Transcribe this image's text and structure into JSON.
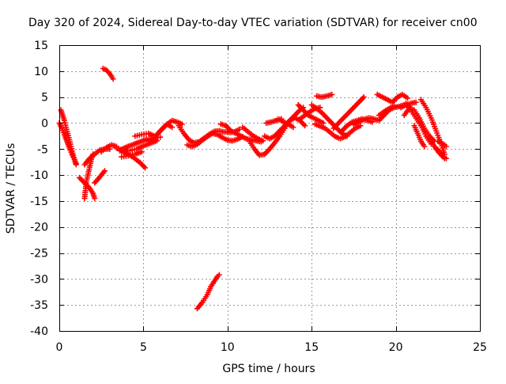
{
  "chart_data": {
    "type": "scatter",
    "title": "Day 320 of 2024, Sidereal Day-to-day VTEC variation (SDTVAR) for receiver cn00",
    "xlabel": "GPS time / hours",
    "ylabel": "SDTVAR / TECUs",
    "xlim": [
      0,
      25
    ],
    "ylim": [
      -40,
      15
    ],
    "x_ticks": [
      0,
      5,
      10,
      15,
      20,
      25
    ],
    "y_ticks": [
      15,
      10,
      5,
      0,
      -5,
      -10,
      -15,
      -20,
      -25,
      -30,
      -35,
      -40
    ],
    "grid": true,
    "marker": "+",
    "color": "#ff0000",
    "series": [
      {
        "name": "SDTVAR",
        "segments": [
          [
            [
              0.1,
              2.5
            ],
            [
              0.2,
              1.5
            ],
            [
              0.3,
              0.5
            ],
            [
              0.4,
              -0.8
            ],
            [
              0.5,
              -2
            ],
            [
              0.6,
              -3.2
            ],
            [
              0.7,
              -4.5
            ],
            [
              0.8,
              -5.8
            ],
            [
              0.9,
              -7
            ],
            [
              1.0,
              -8
            ]
          ],
          [
            [
              0.0,
              0
            ],
            [
              0.15,
              -1
            ],
            [
              0.3,
              -2.2
            ],
            [
              0.45,
              -3.5
            ],
            [
              0.6,
              -4.8
            ],
            [
              0.75,
              -6
            ],
            [
              0.9,
              -7
            ],
            [
              1.0,
              -7.8
            ]
          ],
          [
            [
              1.2,
              -10.5
            ],
            [
              1.5,
              -11.5
            ],
            [
              1.8,
              -12.5
            ],
            [
              2.0,
              -13.5
            ],
            [
              2.1,
              -14.5
            ]
          ],
          [
            [
              1.5,
              -14.5
            ],
            [
              1.55,
              -13
            ],
            [
              1.6,
              -11.5
            ],
            [
              1.7,
              -10
            ],
            [
              1.8,
              -8.5
            ],
            [
              1.9,
              -7
            ],
            [
              2.0,
              -6
            ]
          ],
          [
            [
              2.1,
              -11.5
            ],
            [
              2.3,
              -10.8
            ],
            [
              2.5,
              -10
            ],
            [
              2.7,
              -9.2
            ]
          ],
          [
            [
              1.5,
              -8
            ],
            [
              1.8,
              -6.8
            ],
            [
              2.1,
              -6
            ],
            [
              2.4,
              -5.2
            ],
            [
              2.7,
              -5
            ],
            [
              3.0,
              -5
            ]
          ],
          [
            [
              2.6,
              10.5
            ],
            [
              2.8,
              10.2
            ],
            [
              3.0,
              9.5
            ],
            [
              3.2,
              8.5
            ]
          ],
          [
            [
              2.5,
              -5.5
            ],
            [
              2.8,
              -4.7
            ],
            [
              3.1,
              -4.2
            ],
            [
              3.4,
              -4.5
            ]
          ],
          [
            [
              3.6,
              -5.2
            ],
            [
              4.0,
              -4.6
            ],
            [
              4.4,
              -4.1
            ],
            [
              4.8,
              -3.6
            ],
            [
              5.2,
              -3.1
            ],
            [
              5.6,
              -2.8
            ],
            [
              6.0,
              -2.7
            ]
          ],
          [
            [
              3.4,
              -4.8
            ],
            [
              3.8,
              -5.2
            ],
            [
              4.2,
              -5.3
            ],
            [
              4.6,
              -5.0
            ],
            [
              5.0,
              -4.4
            ],
            [
              5.4,
              -3.9
            ],
            [
              5.8,
              -3.4
            ]
          ],
          [
            [
              3.7,
              -6.5
            ],
            [
              4.1,
              -6.3
            ],
            [
              4.5,
              -6.0
            ],
            [
              4.9,
              -5.5
            ]
          ],
          [
            [
              3.6,
              -5.3
            ],
            [
              4.0,
              -5.8
            ],
            [
              4.4,
              -6.6
            ],
            [
              4.8,
              -7.6
            ],
            [
              5.1,
              -8.6
            ]
          ],
          [
            [
              4.5,
              -2.5
            ],
            [
              4.9,
              -2.2
            ],
            [
              5.3,
              -2.0
            ],
            [
              5.6,
              -2.4
            ]
          ],
          [
            [
              5.3,
              -3.5
            ],
            [
              5.6,
              -3.0
            ],
            [
              6.0,
              -1.5
            ],
            [
              6.3,
              -0.5
            ],
            [
              6.7,
              0.5
            ],
            [
              7.0,
              0.2
            ],
            [
              7.3,
              -0.2
            ]
          ],
          [
            [
              5.8,
              -2.2
            ],
            [
              6.1,
              -1.2
            ],
            [
              6.4,
              -0.2
            ],
            [
              6.7,
              -0.8
            ]
          ],
          [
            [
              7.1,
              -0.5
            ],
            [
              7.4,
              -2.0
            ],
            [
              7.7,
              -3.2
            ],
            [
              8.0,
              -3.8
            ],
            [
              8.3,
              -3.6
            ],
            [
              8.6,
              -2.9
            ],
            [
              8.9,
              -2.2
            ],
            [
              9.2,
              -1.6
            ],
            [
              9.5,
              -1.5
            ],
            [
              9.8,
              -1.7
            ],
            [
              10.1,
              -1.8
            ],
            [
              10.4,
              -1.7
            ],
            [
              10.7,
              -1.2
            ]
          ],
          [
            [
              7.6,
              -4.2
            ],
            [
              7.9,
              -4.5
            ],
            [
              8.2,
              -4.1
            ],
            [
              8.5,
              -3.3
            ],
            [
              8.8,
              -2.6
            ],
            [
              9.1,
              -2.0
            ],
            [
              9.4,
              -2.2
            ],
            [
              9.7,
              -2.8
            ],
            [
              10.0,
              -3.3
            ],
            [
              10.3,
              -3.4
            ],
            [
              10.6,
              -3.1
            ],
            [
              10.9,
              -2.6
            ]
          ],
          [
            [
              9.6,
              -0.2
            ],
            [
              9.9,
              -0.5
            ],
            [
              10.2,
              -1.5
            ],
            [
              10.5,
              -2.0
            ],
            [
              10.8,
              -2.5
            ],
            [
              11.1,
              -3.0
            ],
            [
              11.4,
              -3.2
            ],
            [
              11.7,
              -3.4
            ],
            [
              12.0,
              -3.6
            ]
          ],
          [
            [
              10.9,
              -0.8
            ],
            [
              11.2,
              -1.6
            ],
            [
              11.5,
              -2.4
            ],
            [
              11.8,
              -3.0
            ],
            [
              12.1,
              -3.4
            ]
          ],
          [
            [
              11.3,
              -3.5
            ],
            [
              11.6,
              -5.0
            ],
            [
              11.9,
              -6.2
            ],
            [
              12.2,
              -6.0
            ],
            [
              12.5,
              -5.0
            ],
            [
              12.8,
              -3.8
            ],
            [
              13.1,
              -2.5
            ],
            [
              13.4,
              -1.0
            ],
            [
              13.7,
              0.5
            ],
            [
              14.0,
              1.5
            ],
            [
              14.3,
              2.5
            ],
            [
              14.5,
              3.0
            ]
          ],
          [
            [
              12.2,
              -2.5
            ],
            [
              12.5,
              -3.0
            ],
            [
              12.8,
              -2.5
            ],
            [
              13.1,
              -1.5
            ],
            [
              13.4,
              -0.5
            ],
            [
              13.7,
              0.5
            ],
            [
              14.0,
              1.0
            ],
            [
              14.3,
              0.5
            ],
            [
              14.6,
              -0.5
            ]
          ],
          [
            [
              12.3,
              0
            ],
            [
              12.6,
              0.2
            ],
            [
              12.9,
              0.5
            ],
            [
              13.2,
              0.8
            ]
          ],
          [
            [
              13.0,
              0.8
            ],
            [
              13.3,
              0.3
            ],
            [
              13.6,
              -0.2
            ],
            [
              13.9,
              -0.8
            ]
          ],
          [
            [
              14.2,
              3.5
            ],
            [
              14.5,
              2.5
            ],
            [
              14.8,
              1.5
            ],
            [
              15.1,
              1.0
            ],
            [
              15.4,
              0.5
            ],
            [
              15.7,
              0
            ]
          ],
          [
            [
              14.3,
              0.8
            ],
            [
              14.6,
              1.5
            ],
            [
              14.9,
              2.2
            ],
            [
              15.2,
              2.8
            ],
            [
              15.5,
              3.0
            ]
          ],
          [
            [
              15.0,
              3.5
            ],
            [
              15.3,
              2.8
            ],
            [
              15.6,
              2.0
            ],
            [
              15.9,
              1.0
            ],
            [
              16.2,
              0
            ],
            [
              16.5,
              -1.0
            ],
            [
              16.8,
              -2.0
            ],
            [
              17.1,
              -2.5
            ]
          ],
          [
            [
              15.2,
              -0.2
            ],
            [
              15.5,
              -0.6
            ],
            [
              15.8,
              -1.0
            ],
            [
              16.1,
              -1.8
            ],
            [
              16.4,
              -2.6
            ],
            [
              16.7,
              -3.0
            ],
            [
              17.0,
              -2.6
            ],
            [
              17.3,
              -1.8
            ],
            [
              17.6,
              -1.0
            ],
            [
              17.9,
              -0.5
            ]
          ],
          [
            [
              15.3,
              5.2
            ],
            [
              15.6,
              5.0
            ],
            [
              15.9,
              5.2
            ],
            [
              16.2,
              5.5
            ]
          ],
          [
            [
              16.3,
              -1.0
            ],
            [
              16.6,
              0
            ],
            [
              16.9,
              1.0
            ],
            [
              17.2,
              2.0
            ],
            [
              17.5,
              3.0
            ],
            [
              17.8,
              4.0
            ],
            [
              18.1,
              5.0
            ]
          ],
          [
            [
              16.8,
              -1.5
            ],
            [
              17.1,
              -0.5
            ],
            [
              17.4,
              0.2
            ],
            [
              17.7,
              0.5
            ],
            [
              18.0,
              0.8
            ],
            [
              18.3,
              0.5
            ],
            [
              18.6,
              0.2
            ]
          ],
          [
            [
              17.5,
              -0.3
            ],
            [
              17.8,
              0.2
            ],
            [
              18.1,
              0.7
            ],
            [
              18.4,
              1.0
            ],
            [
              18.7,
              0.8
            ],
            [
              19.0,
              0.5
            ],
            [
              19.3,
              1.5
            ],
            [
              19.6,
              2.5
            ],
            [
              19.9,
              3.0
            ],
            [
              20.2,
              3.2
            ],
            [
              20.5,
              3.5
            ],
            [
              20.8,
              3.2
            ]
          ],
          [
            [
              18.9,
              5.5
            ],
            [
              19.2,
              5.0
            ],
            [
              19.5,
              4.5
            ],
            [
              19.8,
              4.0
            ],
            [
              20.1,
              5.0
            ],
            [
              20.4,
              5.5
            ],
            [
              20.7,
              4.8
            ]
          ],
          [
            [
              19.0,
              1.5
            ],
            [
              19.3,
              2.2
            ],
            [
              19.6,
              2.8
            ],
            [
              19.9,
              3.3
            ]
          ],
          [
            [
              20.5,
              1.5
            ],
            [
              20.8,
              2.8
            ],
            [
              21.1,
              2.5
            ],
            [
              21.4,
              1.0
            ],
            [
              21.7,
              -1.0
            ],
            [
              22.0,
              -2.5
            ],
            [
              22.3,
              -3.5
            ]
          ],
          [
            [
              20.3,
              3.0
            ],
            [
              20.6,
              3.5
            ],
            [
              20.9,
              3.8
            ],
            [
              21.2,
              4.0
            ]
          ],
          [
            [
              20.6,
              3.8
            ],
            [
              20.9,
              2.5
            ],
            [
              21.2,
              1.0
            ],
            [
              21.5,
              -0.5
            ],
            [
              21.8,
              -2.5
            ],
            [
              22.1,
              -4.0
            ]
          ],
          [
            [
              21.1,
              -0.5
            ],
            [
              21.3,
              -2.0
            ],
            [
              21.5,
              -3.5
            ],
            [
              21.7,
              -4.5
            ]
          ],
          [
            [
              21.5,
              4.5
            ],
            [
              21.8,
              3.0
            ],
            [
              22.1,
              1.0
            ],
            [
              22.4,
              -1.5
            ],
            [
              22.7,
              -4.0
            ],
            [
              22.9,
              -6.0
            ]
          ],
          [
            [
              22.0,
              -3.0
            ],
            [
              22.3,
              -4.5
            ],
            [
              22.6,
              -5.5
            ],
            [
              22.9,
              -6.8
            ]
          ],
          [
            [
              22.4,
              -5.0
            ],
            [
              22.6,
              -5.8
            ],
            [
              22.8,
              -6.5
            ],
            [
              23.0,
              -6.8
            ]
          ],
          [
            [
              22.5,
              -3.5
            ],
            [
              22.7,
              -3.8
            ],
            [
              22.9,
              -4.2
            ],
            [
              23.0,
              -4.5
            ]
          ],
          [
            [
              8.2,
              -35.7
            ],
            [
              8.5,
              -34.5
            ],
            [
              8.8,
              -33.0
            ],
            [
              9.0,
              -31.5
            ],
            [
              9.2,
              -30.5
            ],
            [
              9.4,
              -29.5
            ],
            [
              9.5,
              -29.2
            ]
          ]
        ]
      }
    ]
  }
}
